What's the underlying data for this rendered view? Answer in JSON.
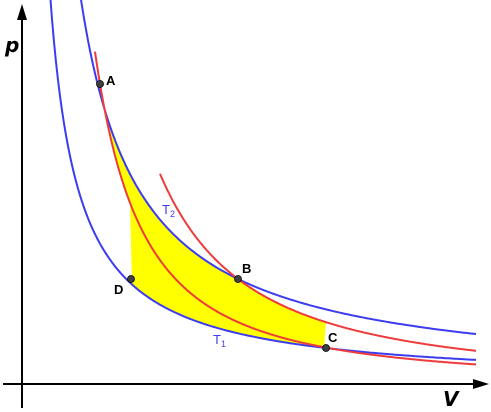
{
  "diagram": {
    "axes": {
      "x_label": "V",
      "y_label": "p"
    },
    "points": {
      "A": "A",
      "B": "B",
      "C": "C",
      "D": "D"
    },
    "isotherms": {
      "hot": {
        "letter": "T",
        "subscript": "2"
      },
      "cold": {
        "letter": "T",
        "subscript": "1"
      }
    },
    "colors": {
      "isotherm": "#3c3cf0",
      "adiabat": "#ee3b3b",
      "cycle_fill": "#ffff00",
      "axis": "#000000",
      "point": "#404040"
    }
  }
}
